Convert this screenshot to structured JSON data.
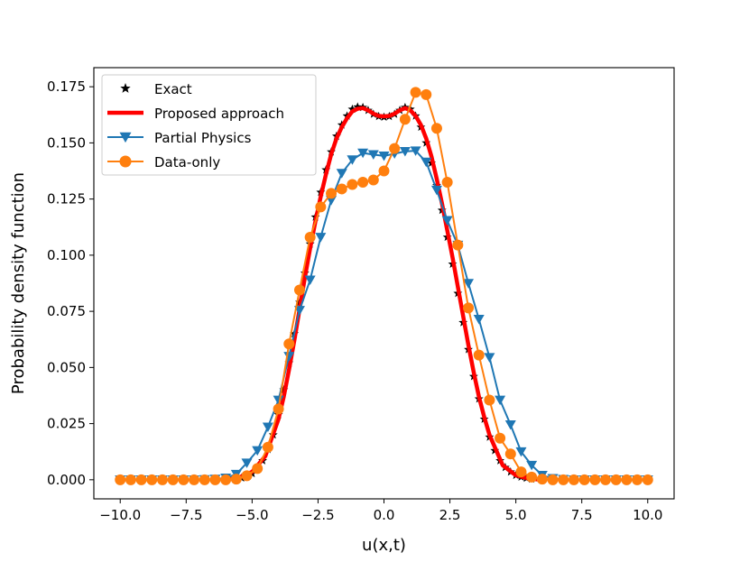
{
  "chart_data": {
    "type": "line",
    "title": "",
    "xlabel": "u(x,t)",
    "ylabel": "Probability density function",
    "xlim": [
      -11,
      11
    ],
    "ylim": [
      -0.0085,
      0.1835
    ],
    "x_ticks": [
      -10,
      -7.5,
      -5,
      -2.5,
      0,
      2.5,
      5,
      7.5,
      10
    ],
    "x_tick_labels": [
      "−10.0",
      "−7.5",
      "−5.0",
      "−2.5",
      "0.0",
      "2.5",
      "5.0",
      "7.5",
      "10.0"
    ],
    "y_ticks": [
      0,
      0.025,
      0.05,
      0.075,
      0.1,
      0.125,
      0.15,
      0.175
    ],
    "y_tick_labels": [
      "0.000",
      "0.025",
      "0.050",
      "0.075",
      "0.100",
      "0.125",
      "0.150",
      "0.175"
    ],
    "legend": {
      "position": "top-left",
      "entries": [
        "Exact",
        "Proposed approach",
        "Partial Physics",
        "Data-only"
      ]
    },
    "series": [
      {
        "name": "Exact",
        "style": "stars",
        "color": "#000000",
        "x": [
          -5.6,
          -5.4,
          -5.2,
          -5.0,
          -4.8,
          -4.6,
          -4.4,
          -4.2,
          -4.0,
          -3.8,
          -3.6,
          -3.4,
          -3.2,
          -3.0,
          -2.8,
          -2.6,
          -2.4,
          -2.2,
          -2.0,
          -1.8,
          -1.6,
          -1.4,
          -1.2,
          -1.0,
          -0.8,
          -0.6,
          -0.4,
          -0.2,
          0.0,
          0.2,
          0.4,
          0.6,
          0.8,
          1.0,
          1.2,
          1.4,
          1.6,
          1.8,
          2.0,
          2.2,
          2.4,
          2.6,
          2.8,
          3.0,
          3.2,
          3.4,
          3.6,
          3.8,
          4.0,
          4.2,
          4.4,
          4.6,
          4.8,
          5.0,
          5.2,
          5.4,
          5.6
        ],
        "y": [
          0.0004,
          0.0008,
          0.0015,
          0.0028,
          0.005,
          0.0085,
          0.0135,
          0.02,
          0.029,
          0.04,
          0.052,
          0.065,
          0.079,
          0.092,
          0.105,
          0.117,
          0.128,
          0.138,
          0.146,
          0.153,
          0.158,
          0.162,
          0.165,
          0.166,
          0.1658,
          0.1645,
          0.1628,
          0.1618,
          0.1615,
          0.1618,
          0.1628,
          0.1645,
          0.1658,
          0.165,
          0.162,
          0.157,
          0.15,
          0.141,
          0.131,
          0.12,
          0.108,
          0.096,
          0.083,
          0.07,
          0.058,
          0.046,
          0.036,
          0.027,
          0.019,
          0.013,
          0.0085,
          0.0055,
          0.0035,
          0.002,
          0.0012,
          0.0007,
          0.0003
        ]
      },
      {
        "name": "Proposed approach",
        "style": "line",
        "color": "#ff0000",
        "x": [
          -6.0,
          -5.5,
          -5.0,
          -4.5,
          -4.0,
          -3.8,
          -3.6,
          -3.4,
          -3.2,
          -3.0,
          -2.8,
          -2.6,
          -2.4,
          -2.2,
          -2.0,
          -1.8,
          -1.6,
          -1.4,
          -1.2,
          -1.0,
          -0.8,
          -0.6,
          -0.4,
          -0.2,
          0.0,
          0.2,
          0.4,
          0.6,
          0.8,
          1.0,
          1.2,
          1.4,
          1.6,
          1.8,
          2.0,
          2.2,
          2.4,
          2.6,
          2.8,
          3.0,
          3.2,
          3.4,
          3.6,
          3.8,
          4.0,
          4.5,
          5.0,
          5.5,
          6.0
        ],
        "y": [
          0.0,
          0.001,
          0.0035,
          0.0105,
          0.027,
          0.037,
          0.049,
          0.062,
          0.076,
          0.09,
          0.103,
          0.115,
          0.126,
          0.136,
          0.145,
          0.152,
          0.157,
          0.161,
          0.164,
          0.1652,
          0.1655,
          0.1645,
          0.163,
          0.162,
          0.1618,
          0.162,
          0.163,
          0.1645,
          0.1655,
          0.1645,
          0.162,
          0.158,
          0.152,
          0.144,
          0.134,
          0.123,
          0.111,
          0.099,
          0.086,
          0.073,
          0.06,
          0.048,
          0.037,
          0.028,
          0.02,
          0.0065,
          0.002,
          0.0005,
          0.0
        ]
      },
      {
        "name": "Partial Physics",
        "style": "line-triangle",
        "color": "#1f77b4",
        "x": [
          -10.0,
          -9.6,
          -9.2,
          -8.8,
          -8.4,
          -8.0,
          -7.6,
          -7.2,
          -6.8,
          -6.4,
          -6.0,
          -5.6,
          -5.2,
          -4.8,
          -4.4,
          -4.0,
          -3.6,
          -3.2,
          -2.8,
          -2.4,
          -2.0,
          -1.6,
          -1.2,
          -0.8,
          -0.4,
          0.0,
          0.4,
          0.8,
          1.2,
          1.6,
          2.0,
          2.4,
          2.8,
          3.2,
          3.6,
          4.0,
          4.4,
          4.8,
          5.2,
          5.6,
          6.0,
          6.4,
          6.8,
          7.2,
          7.6,
          8.0,
          8.4,
          8.8,
          9.2,
          9.6,
          10.0
        ],
        "y": [
          0.0,
          0.0,
          0.0,
          0.0,
          0.0,
          0.0,
          0.0,
          0.0,
          0.0001,
          0.0003,
          0.0008,
          0.0025,
          0.0075,
          0.013,
          0.0235,
          0.0355,
          0.055,
          0.0755,
          0.089,
          0.108,
          0.1245,
          0.1365,
          0.1425,
          0.1455,
          0.1448,
          0.1442,
          0.1452,
          0.1462,
          0.1465,
          0.1415,
          0.129,
          0.1155,
          0.1045,
          0.0875,
          0.0715,
          0.0545,
          0.0355,
          0.0245,
          0.0125,
          0.0065,
          0.002,
          0.0006,
          0.0002,
          0.0,
          0.0,
          0.0,
          0.0,
          0.0,
          0.0,
          0.0,
          0.0
        ]
      },
      {
        "name": "Data-only",
        "style": "line-circle",
        "color": "#ff7f0e",
        "x": [
          -10.0,
          -9.6,
          -9.2,
          -8.8,
          -8.4,
          -8.0,
          -7.6,
          -7.2,
          -6.8,
          -6.4,
          -6.0,
          -5.6,
          -5.2,
          -4.8,
          -4.4,
          -4.0,
          -3.6,
          -3.2,
          -2.8,
          -2.4,
          -2.0,
          -1.6,
          -1.2,
          -0.8,
          -0.4,
          0.0,
          0.4,
          0.8,
          1.2,
          1.6,
          2.0,
          2.4,
          2.8,
          3.2,
          3.6,
          4.0,
          4.4,
          4.8,
          5.2,
          5.6,
          6.0,
          6.4,
          6.8,
          7.2,
          7.6,
          8.0,
          8.4,
          8.8,
          9.2,
          9.6,
          10.0
        ],
        "y": [
          0.0,
          0.0,
          0.0,
          0.0,
          0.0,
          0.0,
          0.0,
          0.0,
          0.0,
          0.0,
          0.0,
          0.0003,
          0.0018,
          0.005,
          0.0145,
          0.0315,
          0.0605,
          0.0845,
          0.108,
          0.1215,
          0.1275,
          0.1295,
          0.1315,
          0.1325,
          0.1335,
          0.1375,
          0.1475,
          0.1605,
          0.1725,
          0.1715,
          0.1565,
          0.1325,
          0.1045,
          0.0765,
          0.0555,
          0.0355,
          0.0185,
          0.0115,
          0.0035,
          0.0012,
          0.0003,
          0.0,
          0.0,
          0.0,
          0.0,
          0.0,
          0.0,
          0.0,
          0.0,
          0.0,
          0.0
        ]
      }
    ]
  }
}
